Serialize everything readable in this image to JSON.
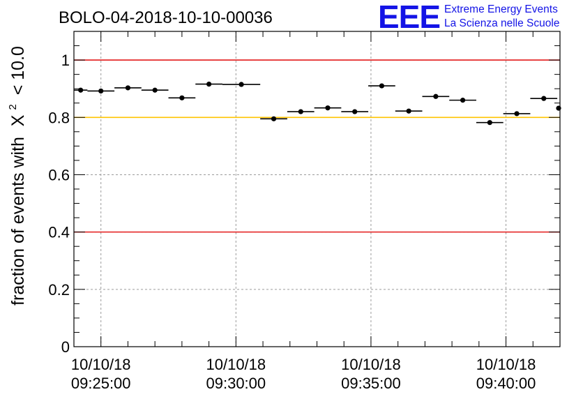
{
  "chart_data": {
    "type": "scatter",
    "title": "BOLO-04-2018-10-10-00036",
    "xlabel": "",
    "ylabel": "fraction of events with",
    "ylabel_symbol": "X",
    "ylabel_exponent": "2",
    "ylabel_suffix": "< 10.0",
    "x_unit": "minutes after 09:25:00",
    "xlim": [
      -1,
      17
    ],
    "ylim": [
      0,
      1.1
    ],
    "y_ticks": [
      {
        "value": 0,
        "label": "0"
      },
      {
        "value": 0.2,
        "label": "0.2"
      },
      {
        "value": 0.4,
        "label": "0.4"
      },
      {
        "value": 0.6,
        "label": "0.6"
      },
      {
        "value": 0.8,
        "label": "0.8"
      },
      {
        "value": 1,
        "label": "1"
      }
    ],
    "x_ticks": [
      {
        "value": 0,
        "date": "10/10/18",
        "time": "09:25:00"
      },
      {
        "value": 5,
        "date": "10/10/18",
        "time": "09:30:00"
      },
      {
        "value": 10,
        "date": "10/10/18",
        "time": "09:35:00"
      },
      {
        "value": 15,
        "date": "10/10/18",
        "time": "09:40:00"
      }
    ],
    "reference_lines": [
      {
        "y": 1.0,
        "color": "#e41a1a"
      },
      {
        "y": 0.8,
        "color": "#ffc400"
      },
      {
        "y": 0.4,
        "color": "#e41a1a"
      }
    ],
    "grid": true,
    "series": [
      {
        "name": "fraction",
        "points": [
          {
            "x0": -1.0,
            "x1": -0.5,
            "y": 0.895
          },
          {
            "x0": -0.5,
            "x1": 0.5,
            "y": 0.892
          },
          {
            "x0": 0.5,
            "x1": 1.5,
            "y": 0.903
          },
          {
            "x0": 1.5,
            "x1": 2.5,
            "y": 0.895
          },
          {
            "x0": 2.5,
            "x1": 3.5,
            "y": 0.868
          },
          {
            "x0": 3.5,
            "x1": 4.5,
            "y": 0.916
          },
          {
            "x0": 4.5,
            "x1": 5.9,
            "y": 0.915
          },
          {
            "x0": 5.9,
            "x1": 6.9,
            "y": 0.795
          },
          {
            "x0": 6.9,
            "x1": 7.9,
            "y": 0.82
          },
          {
            "x0": 7.9,
            "x1": 8.9,
            "y": 0.833
          },
          {
            "x0": 8.9,
            "x1": 9.9,
            "y": 0.82
          },
          {
            "x0": 9.9,
            "x1": 10.9,
            "y": 0.91
          },
          {
            "x0": 10.9,
            "x1": 11.9,
            "y": 0.822
          },
          {
            "x0": 11.9,
            "x1": 12.9,
            "y": 0.873
          },
          {
            "x0": 12.9,
            "x1": 13.9,
            "y": 0.86
          },
          {
            "x0": 13.9,
            "x1": 14.9,
            "y": 0.782
          },
          {
            "x0": 14.9,
            "x1": 15.9,
            "y": 0.813
          },
          {
            "x0": 15.9,
            "x1": 16.9,
            "y": 0.866
          },
          {
            "x0": 16.9,
            "x1": 17.0,
            "y": 0.832
          }
        ]
      }
    ]
  },
  "logo": {
    "mark": "EEE",
    "line1": "Extreme Energy Events",
    "line2": "La Scienza nelle Scuole",
    "color": "#1414e6"
  }
}
